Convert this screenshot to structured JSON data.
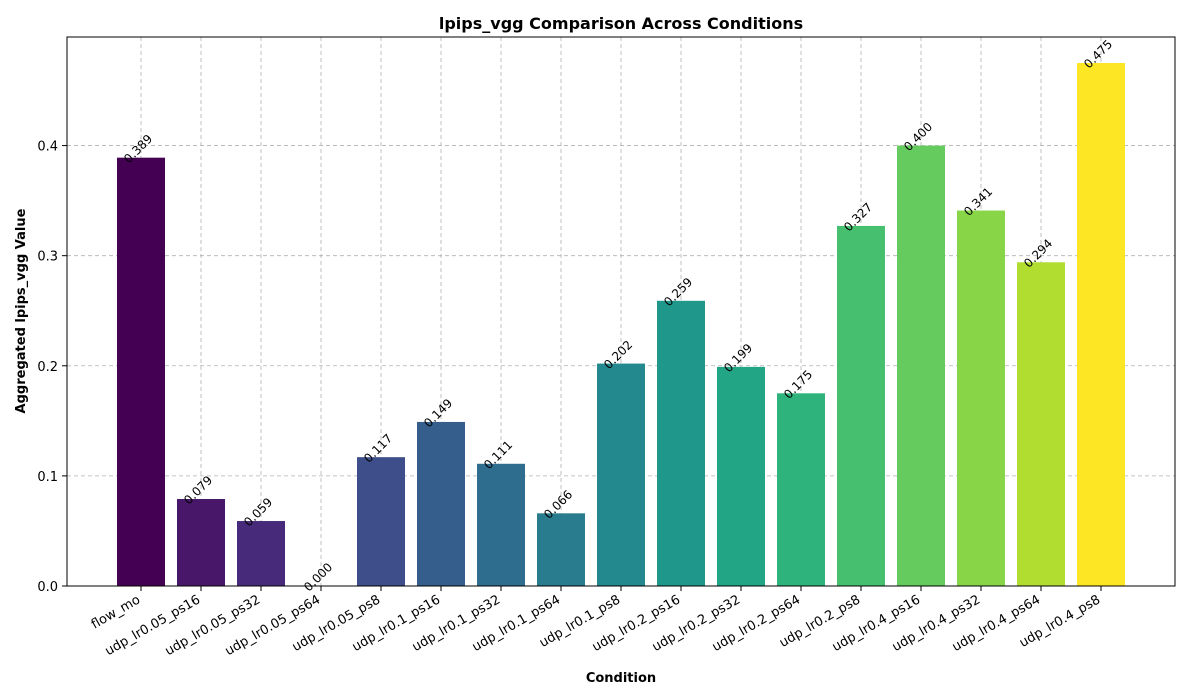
{
  "chart_data": {
    "type": "bar",
    "title": "lpips_vgg Comparison Across Conditions",
    "xlabel": "Condition",
    "ylabel": "Aggregated lpips_vgg Value",
    "ylim": [
      0,
      0.4986
    ],
    "yticks": [
      0.0,
      0.1,
      0.2,
      0.3,
      0.4
    ],
    "ytick_labels": [
      "0.0",
      "0.1",
      "0.2",
      "0.3",
      "0.4"
    ],
    "grid": true,
    "categories": [
      "flow_mo",
      "udp_lr0.05_ps16",
      "udp_lr0.05_ps32",
      "udp_lr0.05_ps64",
      "udp_lr0.05_ps8",
      "udp_lr0.1_ps16",
      "udp_lr0.1_ps32",
      "udp_lr0.1_ps64",
      "udp_lr0.1_ps8",
      "udp_lr0.2_ps16",
      "udp_lr0.2_ps32",
      "udp_lr0.2_ps64",
      "udp_lr0.2_ps8",
      "udp_lr0.4_ps16",
      "udp_lr0.4_ps32",
      "udp_lr0.4_ps64",
      "udp_lr0.4_ps8"
    ],
    "values": [
      0.389,
      0.079,
      0.059,
      0.0,
      0.117,
      0.149,
      0.111,
      0.066,
      0.202,
      0.259,
      0.199,
      0.175,
      0.327,
      0.4,
      0.341,
      0.294,
      0.475
    ],
    "value_labels": [
      "0.389",
      "0.079",
      "0.059",
      "0.000",
      "0.117",
      "0.149",
      "0.111",
      "0.066",
      "0.202",
      "0.259",
      "0.199",
      "0.175",
      "0.327",
      "0.400",
      "0.341",
      "0.294",
      "0.475"
    ],
    "colors": [
      "#440154",
      "#481769",
      "#472a7a",
      "#433d84",
      "#3d4e8a",
      "#355e8d",
      "#2e6d8e",
      "#297b8e",
      "#23898e",
      "#1f978b",
      "#21a585",
      "#2eb37c",
      "#46c06f",
      "#65cb5e",
      "#89d548",
      "#b0dd2f",
      "#fde725"
    ],
    "colormap": "viridis"
  }
}
